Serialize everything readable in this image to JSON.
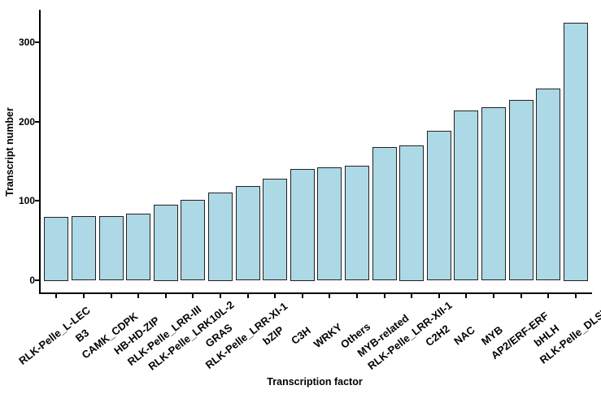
{
  "chart_data": {
    "type": "bar",
    "title": "",
    "xlabel": "Transcription factor",
    "ylabel": "Transcript number",
    "categories": [
      "RLK-Pelle_L-LEC",
      "B3",
      "CAMK_CDPK",
      "HB-HD-ZIP",
      "RLK-Pelle_LRR-III",
      "RLK-Pelle_LRK10L-2",
      "GRAS",
      "RLK-Pelle_LRR-XI-1",
      "bZIP",
      "C3H",
      "WRKY",
      "Others",
      "MYB-related",
      "RLK-Pelle_LRR-XII-1",
      "C2H2",
      "NAC",
      "MYB",
      "AP2/ERF-ERF",
      "bHLH",
      "RLK-Pelle_DLSV"
    ],
    "values": [
      80,
      81,
      81,
      84,
      95,
      101,
      110,
      118,
      128,
      140,
      142,
      144,
      168,
      170,
      188,
      214,
      218,
      227,
      242,
      325
    ],
    "yticks": [
      0,
      100,
      200,
      300
    ],
    "ylim": [
      0,
      338
    ],
    "bar_fill": "#ADD8E6",
    "bar_stroke": "#222222",
    "axis_color": "#000000",
    "grid": false,
    "legend": null
  }
}
